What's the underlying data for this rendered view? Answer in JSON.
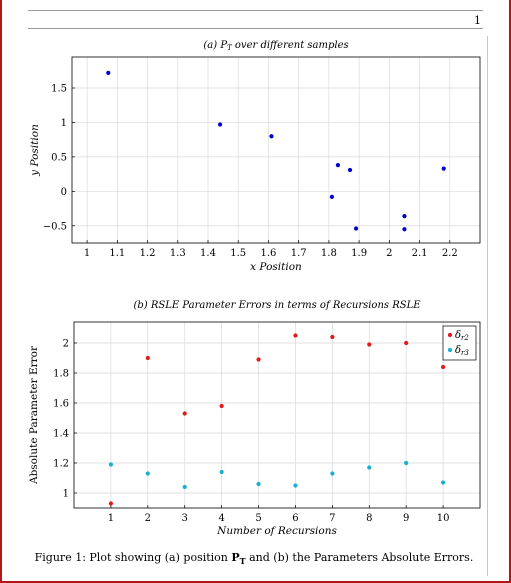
{
  "page": {
    "number": "1"
  },
  "figure_caption": "Figure 1: Plot showing (a) position P_T and (b) the Parameters Absolute Errors.",
  "caption_parts": {
    "prefix": "Figure 1: Plot showing (a) position ",
    "bold": "P",
    "sub": "T",
    "suffix": " and (b) the Parameters Absolute Errors."
  },
  "chart_data": [
    {
      "type": "scatter",
      "title": "(a) P_T over different samples",
      "title_parts": {
        "prefix": "(a) ",
        "main": "P",
        "sub": "T",
        "suffix": " over different samples"
      },
      "xlabel": "x Position",
      "ylabel": "y Position",
      "xlim": [
        0.95,
        2.3
      ],
      "ylim": [
        -0.75,
        1.95
      ],
      "xticks": [
        1,
        1.1,
        1.2,
        1.3,
        1.4,
        1.5,
        1.6,
        1.7,
        1.8,
        1.9,
        2,
        2.1,
        2.2
      ],
      "xtick_labels": [
        "1",
        "1.1",
        "1.2",
        "1.3",
        "1.4",
        "1.5",
        "1.6",
        "1.7",
        "1.8",
        "1.9",
        "2",
        "2.1",
        "2.2"
      ],
      "yticks": [
        -0.5,
        0,
        0.5,
        1,
        1.5
      ],
      "ytick_labels": [
        "−0.5",
        "0",
        "0.5",
        "1",
        "1.5"
      ],
      "grid": true,
      "series": [
        {
          "color": "#0000cc",
          "points": [
            [
              1.07,
              1.72
            ],
            [
              1.44,
              0.97
            ],
            [
              1.61,
              0.8
            ],
            [
              1.81,
              -0.08
            ],
            [
              1.83,
              0.38
            ],
            [
              1.87,
              0.31
            ],
            [
              1.89,
              -0.54
            ],
            [
              2.05,
              -0.36
            ],
            [
              2.05,
              -0.55
            ],
            [
              2.18,
              0.33
            ]
          ]
        }
      ]
    },
    {
      "type": "scatter",
      "title": "(b) RSLE Parameter Errors in terms of Recursions RSLE",
      "xlabel": "Number of Recursions",
      "ylabel": "Absolute Parameter Error",
      "xlim": [
        0,
        11
      ],
      "ylim": [
        0.9,
        2.14
      ],
      "xticks": [
        1,
        2,
        3,
        4,
        5,
        6,
        7,
        8,
        9,
        10
      ],
      "xtick_labels": [
        "1",
        "2",
        "3",
        "4",
        "5",
        "6",
        "7",
        "8",
        "9",
        "10"
      ],
      "yticks": [
        1,
        1.2,
        1.4,
        1.6,
        1.8,
        2
      ],
      "ytick_labels": [
        "1",
        "1.2",
        "1.4",
        "1.6",
        "1.8",
        "2"
      ],
      "grid": true,
      "legend_position": "top-right",
      "series": [
        {
          "name": "δr2",
          "name_parts": {
            "main": "δ",
            "sub": "r2"
          },
          "color": "#e31a1c",
          "x": [
            1,
            2,
            3,
            4,
            5,
            6,
            7,
            8,
            9,
            10
          ],
          "y": [
            0.93,
            1.9,
            1.53,
            1.58,
            1.89,
            2.05,
            2.04,
            1.99,
            2.0,
            1.84
          ]
        },
        {
          "name": "δr3",
          "name_parts": {
            "main": "δ",
            "sub": "r3"
          },
          "color": "#17b0d4",
          "x": [
            1,
            2,
            3,
            4,
            5,
            6,
            7,
            8,
            9,
            10
          ],
          "y": [
            1.19,
            1.13,
            1.04,
            1.14,
            1.06,
            1.05,
            1.13,
            1.17,
            1.2,
            1.07
          ]
        }
      ]
    }
  ]
}
